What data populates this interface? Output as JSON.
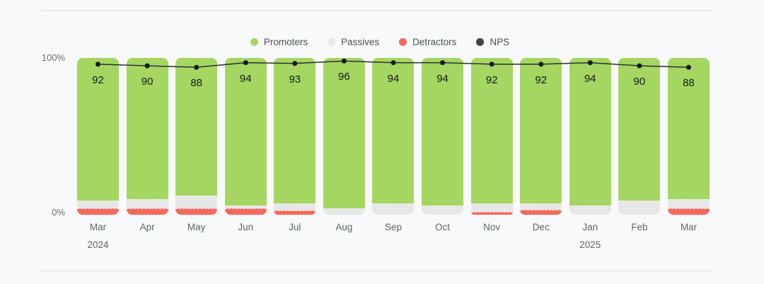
{
  "page": {
    "background": "#f8f9fa",
    "divider_color": "#e9ebee"
  },
  "legend": {
    "items": [
      {
        "label": "Promoters",
        "color": "#a5d661"
      },
      {
        "label": "Passives",
        "color": "#e7e7e7"
      },
      {
        "label": "Detractors",
        "color": "#f5685e"
      },
      {
        "label": "NPS",
        "color": "#3d434c"
      }
    ]
  },
  "y_axis": {
    "top_label": "100%",
    "bottom_label": "0%"
  },
  "chart_data": {
    "type": "bar",
    "stacked": true,
    "title": "",
    "xlabel": "",
    "ylabel": "",
    "bar_ylim": [
      0,
      100
    ],
    "grid": false,
    "legend_position": "top-center",
    "categories": [
      "Mar",
      "Apr",
      "May",
      "Jun",
      "Jul",
      "Aug",
      "Sep",
      "Oct",
      "Nov",
      "Dec",
      "Jan",
      "Feb",
      "Mar"
    ],
    "category_years": [
      {
        "index": 0,
        "label": "2024"
      },
      {
        "index": 10,
        "label": "2025"
      }
    ],
    "series": [
      {
        "name": "Promoters",
        "color": "#a5d661",
        "values": [
          91,
          90,
          88,
          94,
          93,
          96,
          93,
          94,
          93,
          93,
          94,
          91,
          90
        ]
      },
      {
        "name": "Passives",
        "color": "#e7e7e7",
        "values": [
          5,
          6,
          8,
          2,
          4.5,
          4,
          7,
          6,
          5,
          4,
          6,
          9,
          6
        ]
      },
      {
        "name": "Detractors",
        "color": "#f5685e",
        "values": [
          4,
          4,
          4,
          4,
          2.5,
          0,
          0,
          0,
          2,
          3,
          0,
          0,
          4
        ]
      }
    ],
    "nps_line": {
      "name": "NPS",
      "values": [
        92,
        90,
        88,
        94,
        93,
        96,
        94,
        94,
        92,
        92,
        94,
        90,
        88
      ],
      "axis_range": [
        -100,
        100
      ],
      "line_color": "#2b2f36",
      "point_color": "#15181d"
    }
  }
}
